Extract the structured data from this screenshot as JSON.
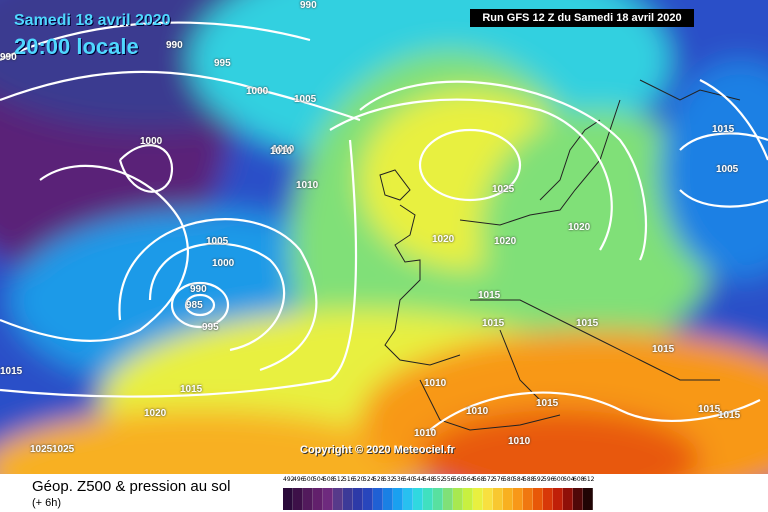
{
  "header": {
    "date": "Samedi 18 avril 2020",
    "time": "20:00 locale",
    "run": "Run GFS 12 Z du Samedi 18 avril 2020"
  },
  "copyright": "Copyright © 2020 Meteociel.fr",
  "footer": {
    "title": "Géop. Z500 & pression au sol",
    "subtitle": "(+ 6h)"
  },
  "legend": {
    "values": [
      "492",
      "496",
      "500",
      "504",
      "508",
      "512",
      "516",
      "520",
      "524",
      "528",
      "532",
      "536",
      "540",
      "544",
      "548",
      "552",
      "556",
      "560",
      "564",
      "568",
      "572",
      "576",
      "580",
      "584",
      "588",
      "592",
      "596",
      "600",
      "604",
      "608",
      "612"
    ],
    "colors": [
      "#2a0a3a",
      "#3d1048",
      "#521a5c",
      "#62206c",
      "#6e2a7e",
      "#573a8a",
      "#3c3a98",
      "#2d3aa8",
      "#2846bc",
      "#2060d4",
      "#1a80e4",
      "#1aa0f0",
      "#28c0f0",
      "#30d8e0",
      "#40e0c0",
      "#58e0a0",
      "#80e078",
      "#a8e850",
      "#c8f040",
      "#e8f040",
      "#f8e040",
      "#f8c830",
      "#f8b020",
      "#f89818",
      "#f07810",
      "#e85808",
      "#d83808",
      "#c02008",
      "#901008",
      "#500808",
      "#200404"
    ]
  },
  "isobar_labels": [
    {
      "text": "990"
    },
    {
      "text": "990"
    },
    {
      "text": "990"
    },
    {
      "text": "995"
    },
    {
      "text": "1000"
    },
    {
      "text": "1005"
    },
    {
      "text": "1000"
    },
    {
      "text": "1010"
    },
    {
      "text": "1010"
    },
    {
      "text": "1005"
    },
    {
      "text": "1000"
    },
    {
      "text": "990"
    },
    {
      "text": "985"
    },
    {
      "text": "995"
    },
    {
      "text": "1015"
    },
    {
      "text": "1020"
    },
    {
      "text": "1025"
    },
    {
      "text": "1020"
    },
    {
      "text": "1020"
    },
    {
      "text": "1020"
    },
    {
      "text": "1015"
    },
    {
      "text": "1015"
    },
    {
      "text": "1015"
    },
    {
      "text": "1015"
    },
    {
      "text": "1010"
    },
    {
      "text": "1010"
    },
    {
      "text": "1015"
    },
    {
      "text": "1010"
    },
    {
      "text": "1010"
    },
    {
      "text": "1015"
    },
    {
      "text": "1015"
    },
    {
      "text": "1015"
    },
    {
      "text": "1015"
    },
    {
      "text": "1010"
    },
    {
      "text": "1005"
    },
    {
      "text": "1025"
    },
    {
      "text": "1025"
    }
  ]
}
